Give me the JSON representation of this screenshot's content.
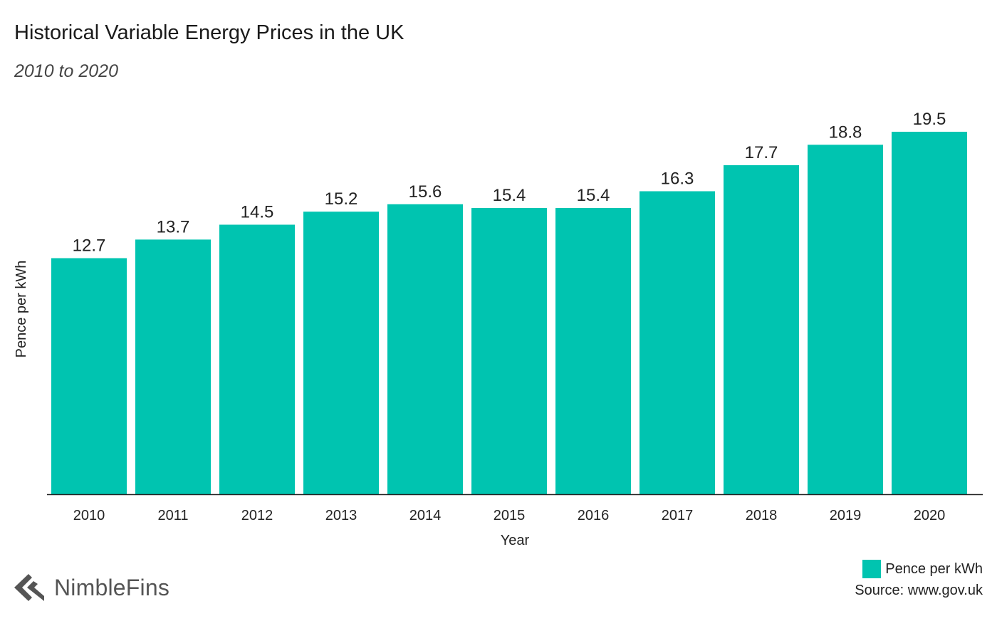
{
  "title": "Historical Variable Energy Prices in the UK",
  "subtitle": "2010 to 2020",
  "source": "Source: www.gov.uk",
  "brand": "NimbleFins",
  "legend_label": "Pence per kWh",
  "colors": {
    "bar": "#00c4b0",
    "axis": "#222222",
    "logo": "#555555"
  },
  "chart_data": {
    "type": "bar",
    "title": "Historical Variable Energy Prices in the UK",
    "subtitle": "2010 to 2020",
    "xlabel": "Year",
    "ylabel": "Pence per kWh",
    "categories": [
      "2010",
      "2011",
      "2012",
      "2013",
      "2014",
      "2015",
      "2016",
      "2017",
      "2018",
      "2019",
      "2020"
    ],
    "series": [
      {
        "name": "Pence per kWh",
        "values": [
          12.7,
          13.7,
          14.5,
          15.2,
          15.6,
          15.4,
          15.4,
          16.3,
          17.7,
          18.8,
          19.5
        ]
      }
    ],
    "value_labels": [
      "12.7",
      "13.7",
      "14.5",
      "15.2",
      "15.6",
      "15.4",
      "15.4",
      "16.3",
      "17.7",
      "18.8",
      "19.5"
    ],
    "ylim": [
      0,
      19.5
    ],
    "grid": false,
    "legend_position": "bottom-right"
  }
}
